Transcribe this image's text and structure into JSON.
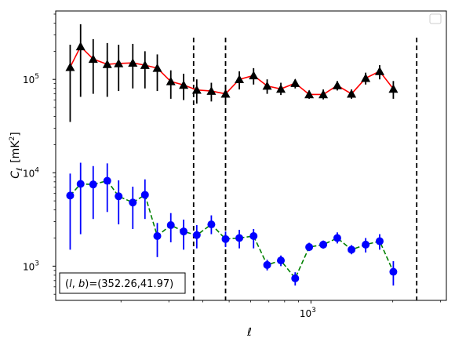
{
  "chart_data": {
    "type": "scatter",
    "xscale": "log",
    "yscale": "log",
    "xlim": [
      115,
      3150
    ],
    "ylim": [
      430,
      540000
    ],
    "x_major_ticks": [
      {
        "value": 1000,
        "label": "10",
        "exp": "3"
      }
    ],
    "y_major_ticks": [
      {
        "value": 1000,
        "label": "10",
        "exp": "3"
      },
      {
        "value": 10000,
        "label": "10",
        "exp": "4"
      },
      {
        "value": 100000,
        "label": "10",
        "exp": "5"
      }
    ],
    "xlabel": "ℓ",
    "ylabel": "C_ℓ  [mK²]",
    "ylabel_main": "C",
    "ylabel_sub": "ℓ",
    "ylabel_unit": "[mK",
    "ylabel_unit_sup": "2",
    "ylabel_unit_close": "]",
    "annotation": "(l, b)=(352.26,41.97)",
    "annotation_l": "l",
    "annotation_b": "b",
    "annotation_values": "=(352.26,41.97)",
    "vertical_lines_x": [
      370,
      485,
      2450
    ],
    "colors": {
      "black": "#000000",
      "red": "#ff0000",
      "blue": "#0000ff",
      "green": "#008000"
    },
    "series": [
      {
        "marker": "triangle",
        "color": "#000000",
        "points": [
          {
            "x": 130,
            "y": 135000,
            "lo": 35000,
            "hi": 235000
          },
          {
            "x": 142,
            "y": 225000,
            "lo": 65000,
            "hi": 390000
          },
          {
            "x": 158,
            "y": 165000,
            "lo": 70000,
            "hi": 270000
          },
          {
            "x": 178,
            "y": 145000,
            "lo": 65000,
            "hi": 245000
          },
          {
            "x": 196,
            "y": 148000,
            "lo": 75000,
            "hi": 235000
          },
          {
            "x": 221,
            "y": 150000,
            "lo": 80000,
            "hi": 240000
          },
          {
            "x": 245,
            "y": 142000,
            "lo": 80000,
            "hi": 200000
          },
          {
            "x": 272,
            "y": 132000,
            "lo": 75000,
            "hi": 185000
          },
          {
            "x": 305,
            "y": 95000,
            "lo": 62000,
            "hi": 125000
          },
          {
            "x": 340,
            "y": 87000,
            "lo": 60000,
            "hi": 115000
          },
          {
            "x": 380,
            "y": 77000,
            "lo": 55000,
            "hi": 100000
          },
          {
            "x": 430,
            "y": 75000,
            "lo": 58000,
            "hi": 92000
          },
          {
            "x": 485,
            "y": 70000,
            "lo": 55000,
            "hi": 85000
          },
          {
            "x": 545,
            "y": 100000,
            "lo": 78000,
            "hi": 122000
          },
          {
            "x": 615,
            "y": 110000,
            "lo": 88000,
            "hi": 132000
          },
          {
            "x": 690,
            "y": 85000,
            "lo": 70000,
            "hi": 100000
          },
          {
            "x": 775,
            "y": 79000,
            "lo": 68000,
            "hi": 92000
          },
          {
            "x": 875,
            "y": 91000,
            "lo": 80000,
            "hi": 100000
          },
          {
            "x": 985,
            "y": 69000,
            "lo": 62000,
            "hi": 76000
          },
          {
            "x": 1110,
            "y": 69000,
            "lo": 61000,
            "hi": 78000
          },
          {
            "x": 1250,
            "y": 86000,
            "lo": 76000,
            "hi": 96000
          },
          {
            "x": 1410,
            "y": 70000,
            "lo": 62000,
            "hi": 78000
          },
          {
            "x": 1590,
            "y": 103000,
            "lo": 88000,
            "hi": 118000
          },
          {
            "x": 1790,
            "y": 122000,
            "lo": 100000,
            "hi": 142000
          },
          {
            "x": 2010,
            "y": 79000,
            "lo": 62000,
            "hi": 96000
          }
        ]
      },
      {
        "marker": "line",
        "color": "#ff0000",
        "dash": false,
        "points": [
          {
            "x": 130,
            "y": 135000
          },
          {
            "x": 142,
            "y": 225000
          },
          {
            "x": 158,
            "y": 165000
          },
          {
            "x": 178,
            "y": 145000
          },
          {
            "x": 196,
            "y": 148000
          },
          {
            "x": 221,
            "y": 150000
          },
          {
            "x": 245,
            "y": 142000
          },
          {
            "x": 272,
            "y": 132000
          },
          {
            "x": 305,
            "y": 95000
          },
          {
            "x": 340,
            "y": 87000
          },
          {
            "x": 380,
            "y": 77000
          },
          {
            "x": 430,
            "y": 75000
          },
          {
            "x": 485,
            "y": 70000
          },
          {
            "x": 545,
            "y": 100000
          },
          {
            "x": 615,
            "y": 110000
          },
          {
            "x": 690,
            "y": 85000
          },
          {
            "x": 775,
            "y": 79000
          },
          {
            "x": 875,
            "y": 91000
          },
          {
            "x": 985,
            "y": 69000
          },
          {
            "x": 1110,
            "y": 69000
          },
          {
            "x": 1250,
            "y": 86000
          },
          {
            "x": 1410,
            "y": 70000
          },
          {
            "x": 1590,
            "y": 103000
          },
          {
            "x": 1790,
            "y": 122000
          },
          {
            "x": 2010,
            "y": 79000
          }
        ]
      },
      {
        "marker": "circle",
        "color": "#0000ff",
        "points": [
          {
            "x": 130,
            "y": 5700,
            "lo": 1500,
            "hi": 9800
          },
          {
            "x": 142,
            "y": 7600,
            "lo": 2200,
            "hi": 12800
          },
          {
            "x": 158,
            "y": 7500,
            "lo": 3200,
            "hi": 11800
          },
          {
            "x": 178,
            "y": 8200,
            "lo": 3800,
            "hi": 12600
          },
          {
            "x": 196,
            "y": 5600,
            "lo": 2800,
            "hi": 8300
          },
          {
            "x": 221,
            "y": 4800,
            "lo": 2500,
            "hi": 7100
          },
          {
            "x": 245,
            "y": 5800,
            "lo": 3200,
            "hi": 8500
          },
          {
            "x": 272,
            "y": 2100,
            "lo": 1250,
            "hi": 2900
          },
          {
            "x": 305,
            "y": 2750,
            "lo": 1800,
            "hi": 3700
          },
          {
            "x": 340,
            "y": 2350,
            "lo": 1500,
            "hi": 3150
          },
          {
            "x": 380,
            "y": 2150,
            "lo": 1550,
            "hi": 2750
          },
          {
            "x": 430,
            "y": 2800,
            "lo": 2200,
            "hi": 3500
          },
          {
            "x": 485,
            "y": 1950,
            "lo": 1600,
            "hi": 2350
          },
          {
            "x": 545,
            "y": 2000,
            "lo": 1550,
            "hi": 2450
          },
          {
            "x": 615,
            "y": 2100,
            "lo": 1550,
            "hi": 2500
          },
          {
            "x": 690,
            "y": 1030,
            "lo": 900,
            "hi": 1170
          },
          {
            "x": 775,
            "y": 1150,
            "lo": 1000,
            "hi": 1300
          },
          {
            "x": 875,
            "y": 740,
            "lo": 620,
            "hi": 860
          },
          {
            "x": 985,
            "y": 1600,
            "lo": 1450,
            "hi": 1780
          },
          {
            "x": 1110,
            "y": 1700,
            "lo": 1540,
            "hi": 1880
          },
          {
            "x": 1250,
            "y": 2000,
            "lo": 1750,
            "hi": 2300
          },
          {
            "x": 1410,
            "y": 1500,
            "lo": 1340,
            "hi": 1680
          },
          {
            "x": 1590,
            "y": 1700,
            "lo": 1400,
            "hi": 2000
          },
          {
            "x": 1790,
            "y": 1850,
            "lo": 1500,
            "hi": 2200
          },
          {
            "x": 2010,
            "y": 870,
            "lo": 620,
            "hi": 1130
          }
        ]
      },
      {
        "marker": "line",
        "color": "#008000",
        "dash": true,
        "points": [
          {
            "x": 130,
            "y": 5700
          },
          {
            "x": 142,
            "y": 7600
          },
          {
            "x": 158,
            "y": 7500
          },
          {
            "x": 178,
            "y": 8200
          },
          {
            "x": 196,
            "y": 5600
          },
          {
            "x": 221,
            "y": 4800
          },
          {
            "x": 245,
            "y": 5800
          },
          {
            "x": 272,
            "y": 2100
          },
          {
            "x": 305,
            "y": 2750
          },
          {
            "x": 340,
            "y": 2350
          },
          {
            "x": 380,
            "y": 2150
          },
          {
            "x": 430,
            "y": 2800
          },
          {
            "x": 485,
            "y": 1950
          },
          {
            "x": 545,
            "y": 2000
          },
          {
            "x": 615,
            "y": 2100
          },
          {
            "x": 690,
            "y": 1030
          },
          {
            "x": 775,
            "y": 1150
          },
          {
            "x": 875,
            "y": 740
          },
          {
            "x": 985,
            "y": 1600
          },
          {
            "x": 1110,
            "y": 1700
          },
          {
            "x": 1250,
            "y": 2000
          },
          {
            "x": 1410,
            "y": 1500
          },
          {
            "x": 1590,
            "y": 1700
          },
          {
            "x": 1790,
            "y": 1850
          },
          {
            "x": 2010,
            "y": 870
          }
        ]
      }
    ]
  }
}
